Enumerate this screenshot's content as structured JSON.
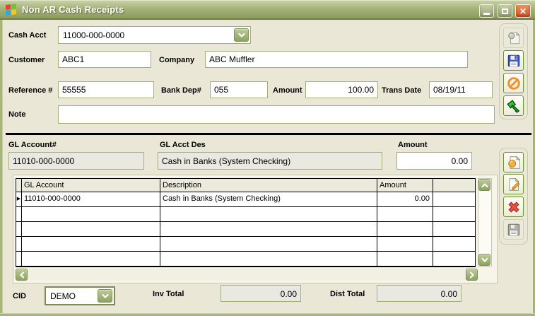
{
  "window": {
    "title": "Non AR Cash Receipts"
  },
  "form": {
    "cash_acct": {
      "label": "Cash Acct",
      "value": "11000-000-0000"
    },
    "customer": {
      "label": "Customer",
      "value": "ABC1"
    },
    "company": {
      "label": "Company",
      "value": "ABC Muffler"
    },
    "reference": {
      "label": "Reference #",
      "value": "55555"
    },
    "bank_dep": {
      "label": "Bank Dep#",
      "value": "055"
    },
    "amount": {
      "label": "Amount",
      "value": "100.00"
    },
    "trans_date": {
      "label": "Trans Date",
      "value": "08/19/11"
    },
    "note": {
      "label": "Note",
      "value": ""
    }
  },
  "gl_summary": {
    "account": {
      "label": "GL Account#",
      "value": "11010-000-0000"
    },
    "description": {
      "label": "GL Acct Des",
      "value": "Cash in Banks (System Checking)"
    },
    "amount": {
      "label": "Amount",
      "value": "0.00"
    }
  },
  "grid": {
    "headers": [
      "GL Account",
      "Description",
      "Amount"
    ],
    "rows": [
      [
        "11010-000-0000",
        "Cash in Banks (System Checking)",
        "0.00"
      ]
    ],
    "empty_row_count": 4,
    "row_marker": "▶"
  },
  "toolbar_side_top": {
    "buttons": [
      "note-disabled-icon",
      "save-icon",
      "cancel-icon",
      "post-hammer-icon"
    ]
  },
  "toolbar_side_grid": {
    "buttons": [
      "new-record-icon",
      "edit-record-icon",
      "delete-record-icon",
      "save-row-disabled-icon"
    ]
  },
  "footer": {
    "cid": {
      "label": "CID",
      "value": "DEMO"
    },
    "inv_total": {
      "label": "Inv Total",
      "value": "0.00"
    },
    "dist_total": {
      "label": "Dist Total",
      "value": "0.00"
    }
  },
  "colors": {
    "titlebar": "#A7B47A",
    "accent_green": "#8CA35E",
    "close_red": "#D4502A",
    "background": "#EAE7D6",
    "input_border": "#9FB27E",
    "grid_line": "#000000"
  }
}
